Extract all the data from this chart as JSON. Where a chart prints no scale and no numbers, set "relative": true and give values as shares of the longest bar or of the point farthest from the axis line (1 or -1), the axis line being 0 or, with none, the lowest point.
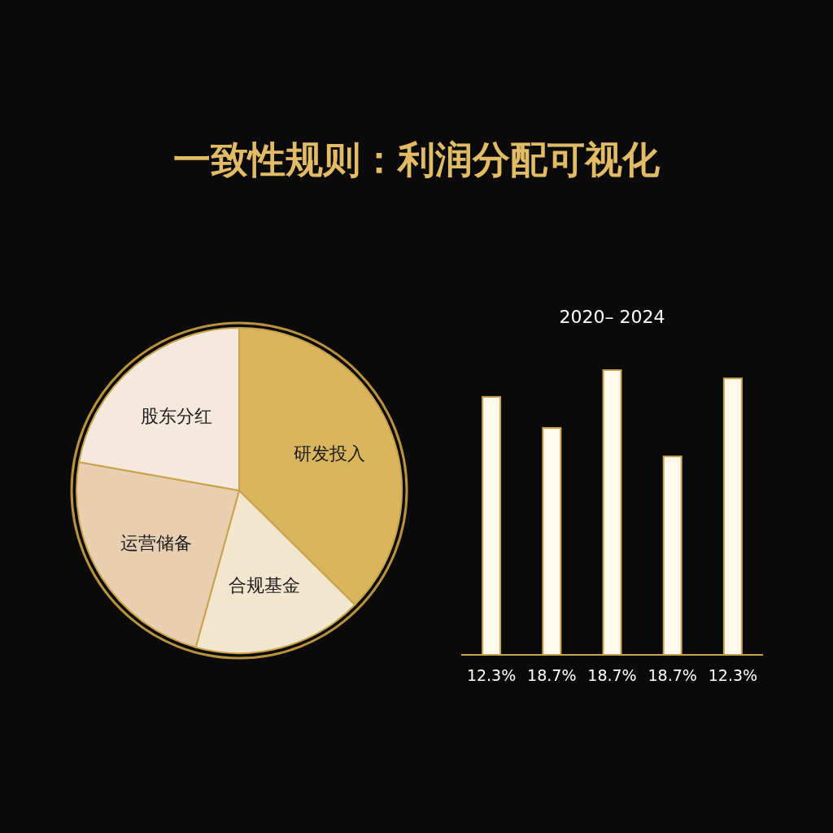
{
  "chart_data": [
    {
      "type": "pie",
      "title": "一致性规则：利润分配可视化",
      "categories": [
        "研发投入",
        "合规基金",
        "运营储备",
        "股东分红"
      ],
      "values": [
        37.4,
        16.9,
        23.5,
        22.2
      ],
      "colors": [
        "#d9b55e",
        "#f3e6cf",
        "#e9cfb2",
        "#f5e9dd"
      ]
    },
    {
      "type": "bar",
      "title": "2020– 2024",
      "relative": true,
      "categories": [
        "12.3%",
        "18.7%",
        "18.7%",
        "18.7%",
        "12.3%"
      ],
      "values": [
        0.906,
        0.797,
        1,
        0.697,
        0.971
      ],
      "color": "#fff8ec"
    }
  ]
}
